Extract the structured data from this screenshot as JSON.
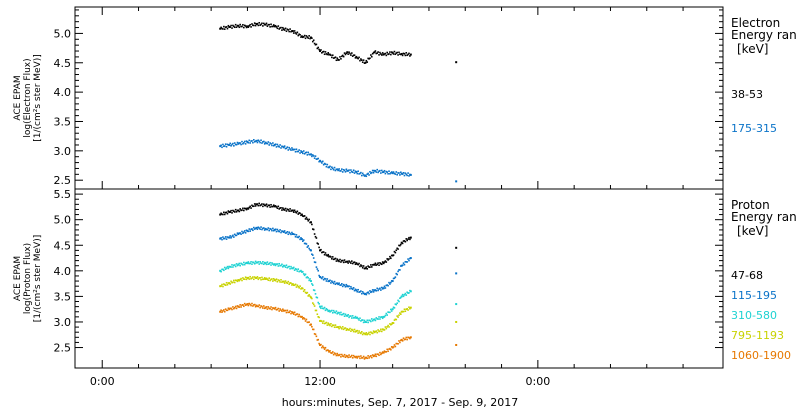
{
  "xlabel": "hours:minutes, Sep.  7, 2017 - Sep.  9, 2017",
  "x_tick_labels": [
    "0:00",
    "12:00",
    "0:00"
  ],
  "chart_data": [
    {
      "type": "scatter",
      "ylabel_lines": [
        "ACE EPAM",
        "log(Electron Flux)",
        "[1/(cm²s ster MeV)]"
      ],
      "y_tick_labels": [
        "2.5",
        "3.0",
        "3.5",
        "4.0",
        "4.5",
        "5.0"
      ],
      "ylim": [
        2.35,
        5.45
      ],
      "legend_title": [
        "Electron",
        "Energy ran",
        "[keV]"
      ],
      "series": [
        {
          "name": "38-53",
          "color": "#000000",
          "points": [
            [
              6.5,
              5.08
            ],
            [
              7.0,
              5.11
            ],
            [
              7.5,
              5.13
            ],
            [
              8.0,
              5.12
            ],
            [
              8.5,
              5.16
            ],
            [
              9.0,
              5.15
            ],
            [
              9.5,
              5.12
            ],
            [
              10.0,
              5.07
            ],
            [
              10.5,
              5.04
            ],
            [
              11.0,
              4.95
            ],
            [
              11.5,
              4.93
            ],
            [
              12.0,
              4.7
            ],
            [
              12.5,
              4.64
            ],
            [
              13.0,
              4.55
            ],
            [
              13.5,
              4.68
            ],
            [
              14.0,
              4.6
            ],
            [
              14.5,
              4.5
            ],
            [
              15.0,
              4.68
            ],
            [
              15.5,
              4.64
            ],
            [
              16.0,
              4.67
            ],
            [
              16.5,
              4.65
            ],
            [
              17.0,
              4.64
            ],
            [
              19.5,
              4.51
            ]
          ]
        },
        {
          "name": "175-315",
          "color": "#0a73c8",
          "points": [
            [
              6.5,
              3.08
            ],
            [
              7.0,
              3.1
            ],
            [
              7.5,
              3.12
            ],
            [
              8.0,
              3.15
            ],
            [
              8.5,
              3.17
            ],
            [
              9.0,
              3.14
            ],
            [
              9.5,
              3.1
            ],
            [
              10.0,
              3.06
            ],
            [
              10.5,
              3.02
            ],
            [
              11.0,
              2.98
            ],
            [
              11.5,
              2.94
            ],
            [
              12.0,
              2.83
            ],
            [
              12.5,
              2.72
            ],
            [
              13.0,
              2.67
            ],
            [
              13.5,
              2.66
            ],
            [
              14.0,
              2.64
            ],
            [
              14.5,
              2.58
            ],
            [
              15.0,
              2.66
            ],
            [
              15.5,
              2.64
            ],
            [
              16.0,
              2.62
            ],
            [
              16.5,
              2.61
            ],
            [
              17.0,
              2.59
            ],
            [
              19.5,
              2.48
            ]
          ]
        }
      ]
    },
    {
      "type": "scatter",
      "ylabel_lines": [
        "ACE EPAM",
        "log(Proton Flux)",
        "[1/(cm²s ster MeV)]"
      ],
      "y_tick_labels": [
        "2.5",
        "3.0",
        "3.5",
        "4.0",
        "4.5",
        "5.0",
        "5.5"
      ],
      "ylim": [
        2.1,
        5.6
      ],
      "legend_title": [
        "Proton",
        "Energy ran",
        "[keV]"
      ],
      "series": [
        {
          "name": "47-68",
          "color": "#000000",
          "points": [
            [
              6.5,
              5.1
            ],
            [
              7.0,
              5.15
            ],
            [
              7.5,
              5.18
            ],
            [
              8.0,
              5.22
            ],
            [
              8.5,
              5.3
            ],
            [
              9.0,
              5.28
            ],
            [
              9.5,
              5.26
            ],
            [
              10.0,
              5.2
            ],
            [
              10.5,
              5.18
            ],
            [
              11.0,
              5.1
            ],
            [
              11.5,
              4.95
            ],
            [
              12.0,
              4.4
            ],
            [
              12.5,
              4.28
            ],
            [
              13.0,
              4.2
            ],
            [
              13.5,
              4.18
            ],
            [
              14.0,
              4.15
            ],
            [
              14.5,
              4.05
            ],
            [
              15.0,
              4.12
            ],
            [
              15.5,
              4.15
            ],
            [
              16.0,
              4.3
            ],
            [
              16.5,
              4.55
            ],
            [
              17.0,
              4.65
            ],
            [
              19.5,
              4.45
            ]
          ]
        },
        {
          "name": "115-195",
          "color": "#0a73c8",
          "points": [
            [
              6.5,
              4.63
            ],
            [
              7.0,
              4.65
            ],
            [
              7.5,
              4.72
            ],
            [
              8.0,
              4.78
            ],
            [
              8.5,
              4.84
            ],
            [
              9.0,
              4.82
            ],
            [
              9.5,
              4.8
            ],
            [
              10.0,
              4.76
            ],
            [
              10.5,
              4.72
            ],
            [
              11.0,
              4.62
            ],
            [
              11.5,
              4.4
            ],
            [
              12.0,
              3.88
            ],
            [
              12.5,
              3.8
            ],
            [
              13.0,
              3.74
            ],
            [
              13.5,
              3.7
            ],
            [
              14.0,
              3.62
            ],
            [
              14.5,
              3.55
            ],
            [
              15.0,
              3.62
            ],
            [
              15.5,
              3.66
            ],
            [
              16.0,
              3.8
            ],
            [
              16.5,
              4.1
            ],
            [
              17.0,
              4.25
            ],
            [
              19.5,
              3.95
            ]
          ]
        },
        {
          "name": "310-580",
          "color": "#1ed2d2",
          "points": [
            [
              6.5,
              4.0
            ],
            [
              7.0,
              4.08
            ],
            [
              7.5,
              4.12
            ],
            [
              8.0,
              4.15
            ],
            [
              8.5,
              4.16
            ],
            [
              9.0,
              4.15
            ],
            [
              9.5,
              4.13
            ],
            [
              10.0,
              4.1
            ],
            [
              10.5,
              4.05
            ],
            [
              11.0,
              3.98
            ],
            [
              11.5,
              3.8
            ],
            [
              12.0,
              3.3
            ],
            [
              12.5,
              3.22
            ],
            [
              13.0,
              3.18
            ],
            [
              13.5,
              3.12
            ],
            [
              14.0,
              3.08
            ],
            [
              14.5,
              3.0
            ],
            [
              15.0,
              3.05
            ],
            [
              15.5,
              3.1
            ],
            [
              16.0,
              3.25
            ],
            [
              16.5,
              3.5
            ],
            [
              17.0,
              3.6
            ],
            [
              19.5,
              3.35
            ]
          ]
        },
        {
          "name": "795-1193",
          "color": "#c8d200",
          "points": [
            [
              6.5,
              3.7
            ],
            [
              7.0,
              3.76
            ],
            [
              7.5,
              3.82
            ],
            [
              8.0,
              3.86
            ],
            [
              8.5,
              3.86
            ],
            [
              9.0,
              3.84
            ],
            [
              9.5,
              3.82
            ],
            [
              10.0,
              3.79
            ],
            [
              10.5,
              3.74
            ],
            [
              11.0,
              3.66
            ],
            [
              11.5,
              3.48
            ],
            [
              12.0,
              3.02
            ],
            [
              12.5,
              2.95
            ],
            [
              13.0,
              2.9
            ],
            [
              13.5,
              2.86
            ],
            [
              14.0,
              2.82
            ],
            [
              14.5,
              2.76
            ],
            [
              15.0,
              2.8
            ],
            [
              15.5,
              2.85
            ],
            [
              16.0,
              2.98
            ],
            [
              16.5,
              3.2
            ],
            [
              17.0,
              3.28
            ],
            [
              19.5,
              3.0
            ]
          ]
        },
        {
          "name": "1060-1900",
          "color": "#e67800",
          "points": [
            [
              6.5,
              3.2
            ],
            [
              7.0,
              3.25
            ],
            [
              7.5,
              3.3
            ],
            [
              8.0,
              3.35
            ],
            [
              8.5,
              3.32
            ],
            [
              9.0,
              3.28
            ],
            [
              9.5,
              3.26
            ],
            [
              10.0,
              3.22
            ],
            [
              10.5,
              3.18
            ],
            [
              11.0,
              3.1
            ],
            [
              11.5,
              2.95
            ],
            [
              12.0,
              2.55
            ],
            [
              12.5,
              2.42
            ],
            [
              13.0,
              2.35
            ],
            [
              13.5,
              2.33
            ],
            [
              14.0,
              2.32
            ],
            [
              14.5,
              2.3
            ],
            [
              15.0,
              2.34
            ],
            [
              15.5,
              2.4
            ],
            [
              16.0,
              2.5
            ],
            [
              16.5,
              2.65
            ],
            [
              17.0,
              2.7
            ],
            [
              19.5,
              2.55
            ]
          ]
        }
      ]
    }
  ]
}
